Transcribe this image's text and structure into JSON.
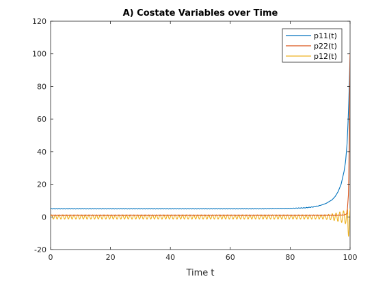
{
  "chart_data": {
    "type": "line",
    "title": "A) Costate Variables over Time",
    "xlabel": "Time t",
    "ylabel": "",
    "xlim": [
      0,
      100
    ],
    "ylim": [
      -20,
      120
    ],
    "xticks": [
      "0",
      "20",
      "40",
      "60",
      "80",
      "100"
    ],
    "yticks": [
      "-20",
      "0",
      "20",
      "40",
      "60",
      "80",
      "100",
      "120"
    ],
    "grid": false,
    "legend_position": "top-right",
    "series": [
      {
        "name": "p11(t)",
        "color": "#0072BD",
        "x": [
          0,
          10,
          20,
          30,
          40,
          50,
          60,
          70,
          80,
          85,
          88,
          90,
          92,
          94,
          95,
          96,
          97,
          98,
          98.5,
          99,
          99.3,
          99.6,
          99.8,
          100
        ],
        "y": [
          5,
          5,
          5,
          5,
          5,
          5,
          5,
          5,
          5.2,
          5.6,
          6.2,
          7,
          8.3,
          10.5,
          12.5,
          15.5,
          20,
          28,
          34,
          45,
          57,
          72,
          86,
          100
        ]
      },
      {
        "name": "p22(t)",
        "color": "#D95319",
        "x": [
          0,
          10,
          20,
          30,
          40,
          50,
          60,
          70,
          80,
          90,
          95,
          98,
          99,
          99.5,
          99.8,
          100
        ],
        "y": [
          1,
          1,
          1,
          1,
          1,
          1,
          1,
          1,
          1,
          1,
          1,
          1.2,
          2,
          15,
          60,
          100
        ]
      },
      {
        "name": "p12(t)",
        "color": "#EDB120",
        "x": [
          0,
          100
        ],
        "y": [
          0,
          0
        ],
        "note_oscillation": "oscillates around 0 with amplitude ~1.3, growing to ~-12 near t=99.5"
      }
    ]
  }
}
